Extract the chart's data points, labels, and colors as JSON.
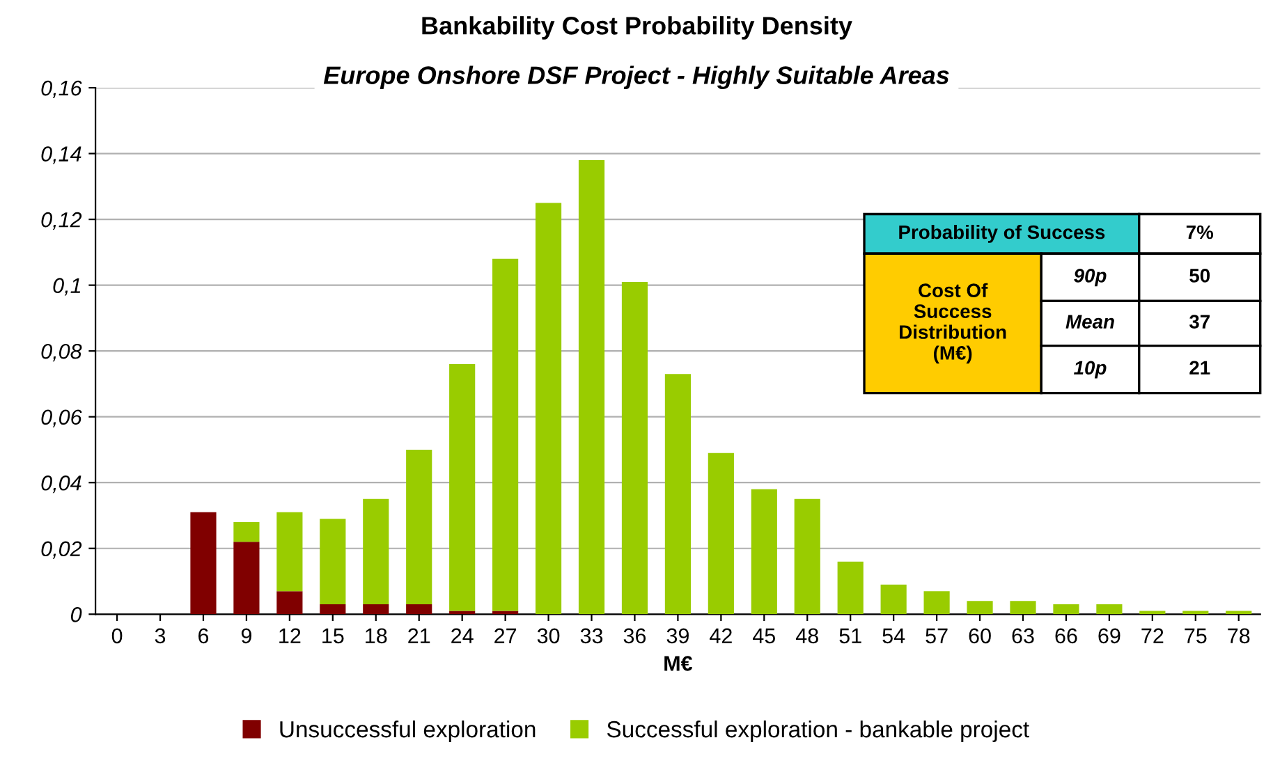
{
  "chart_data": {
    "type": "bar",
    "stacked": true,
    "title": "Bankability Cost Probability Density",
    "subtitle": "Europe Onshore DSF Project - Highly Suitable Areas",
    "xlabel": "M€",
    "categories": [
      "0",
      "3",
      "6",
      "9",
      "12",
      "15",
      "18",
      "21",
      "24",
      "27",
      "30",
      "33",
      "36",
      "39",
      "42",
      "45",
      "48",
      "51",
      "54",
      "57",
      "60",
      "63",
      "66",
      "69",
      "72",
      "75",
      "78"
    ],
    "series": [
      {
        "name": "Unsuccessful exploration",
        "color": "#800000",
        "values": [
          0,
          0,
          0.031,
          0.022,
          0.007,
          0.003,
          0.003,
          0.003,
          0.001,
          0.001,
          0,
          0,
          0,
          0,
          0,
          0,
          0,
          0,
          0,
          0,
          0,
          0,
          0,
          0,
          0,
          0,
          0
        ]
      },
      {
        "name": "Successful exploration - bankable project",
        "color": "#99cc00",
        "values": [
          0,
          0,
          0,
          0.006,
          0.024,
          0.026,
          0.032,
          0.047,
          0.075,
          0.107,
          0.125,
          0.138,
          0.101,
          0.073,
          0.049,
          0.038,
          0.035,
          0.016,
          0.009,
          0.007,
          0.004,
          0.004,
          0.003,
          0.003,
          0.001,
          0.001,
          0.001
        ]
      }
    ],
    "ylim": [
      0,
      0.16
    ],
    "yticks": [
      0,
      {
        "value": 0.02,
        "label": "0,02"
      },
      {
        "value": 0.04,
        "label": "0,04"
      },
      {
        "value": 0.06,
        "label": "0,06"
      },
      {
        "value": 0.08,
        "label": "0,08"
      },
      {
        "value": 0.1,
        "label": "0,1"
      },
      {
        "value": 0.12,
        "label": "0,12"
      },
      {
        "value": 0.14,
        "label": "0,14"
      },
      {
        "value": 0.16,
        "label": "0,16"
      }
    ],
    "grid": "y",
    "legend": "bottom",
    "annotations": [
      "Probability of Success",
      "7%",
      "Cost Of\nSuccess\nDistribution\n(M€)",
      "90p",
      "50",
      "Mean",
      "37",
      "10p",
      "21"
    ]
  }
}
